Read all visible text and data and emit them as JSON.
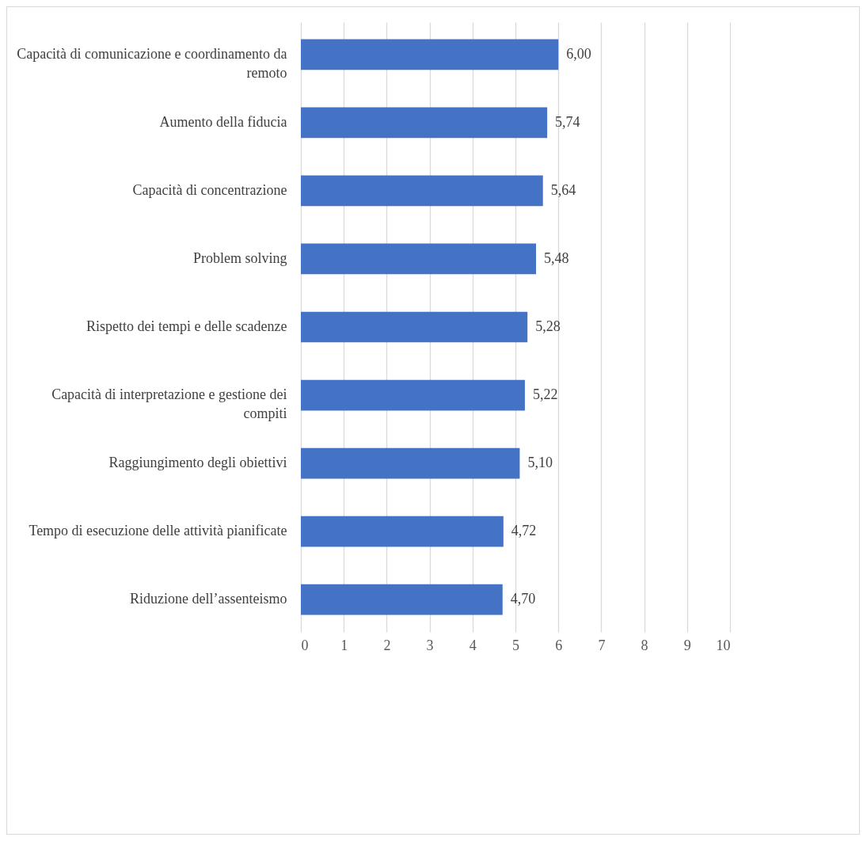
{
  "chart_data": {
    "type": "bar",
    "orientation": "horizontal",
    "categories": [
      "Capacità di comunicazione e coordinamento da remoto",
      "Aumento della fiducia",
      "Capacità di concentrazione",
      "Problem solving",
      "Rispetto dei tempi e delle scadenze",
      "Capacità di interpretazione e gestione dei compiti",
      "Raggiungimento degli obiettivi",
      "Tempo di esecuzione delle attività pianificate",
      "Riduzione dell’assenteismo"
    ],
    "values": [
      6.0,
      5.74,
      5.64,
      5.48,
      5.28,
      5.22,
      5.1,
      4.72,
      4.7
    ],
    "value_labels": [
      "6,00",
      "5,74",
      "5,64",
      "5,48",
      "5,28",
      "5,22",
      "5,10",
      "4,72",
      "4,70"
    ],
    "color": "#4472c4",
    "xlim": [
      0,
      10
    ],
    "xticks": [
      0,
      1,
      2,
      3,
      4,
      5,
      6,
      7,
      8,
      9,
      10
    ],
    "grid": "x"
  }
}
